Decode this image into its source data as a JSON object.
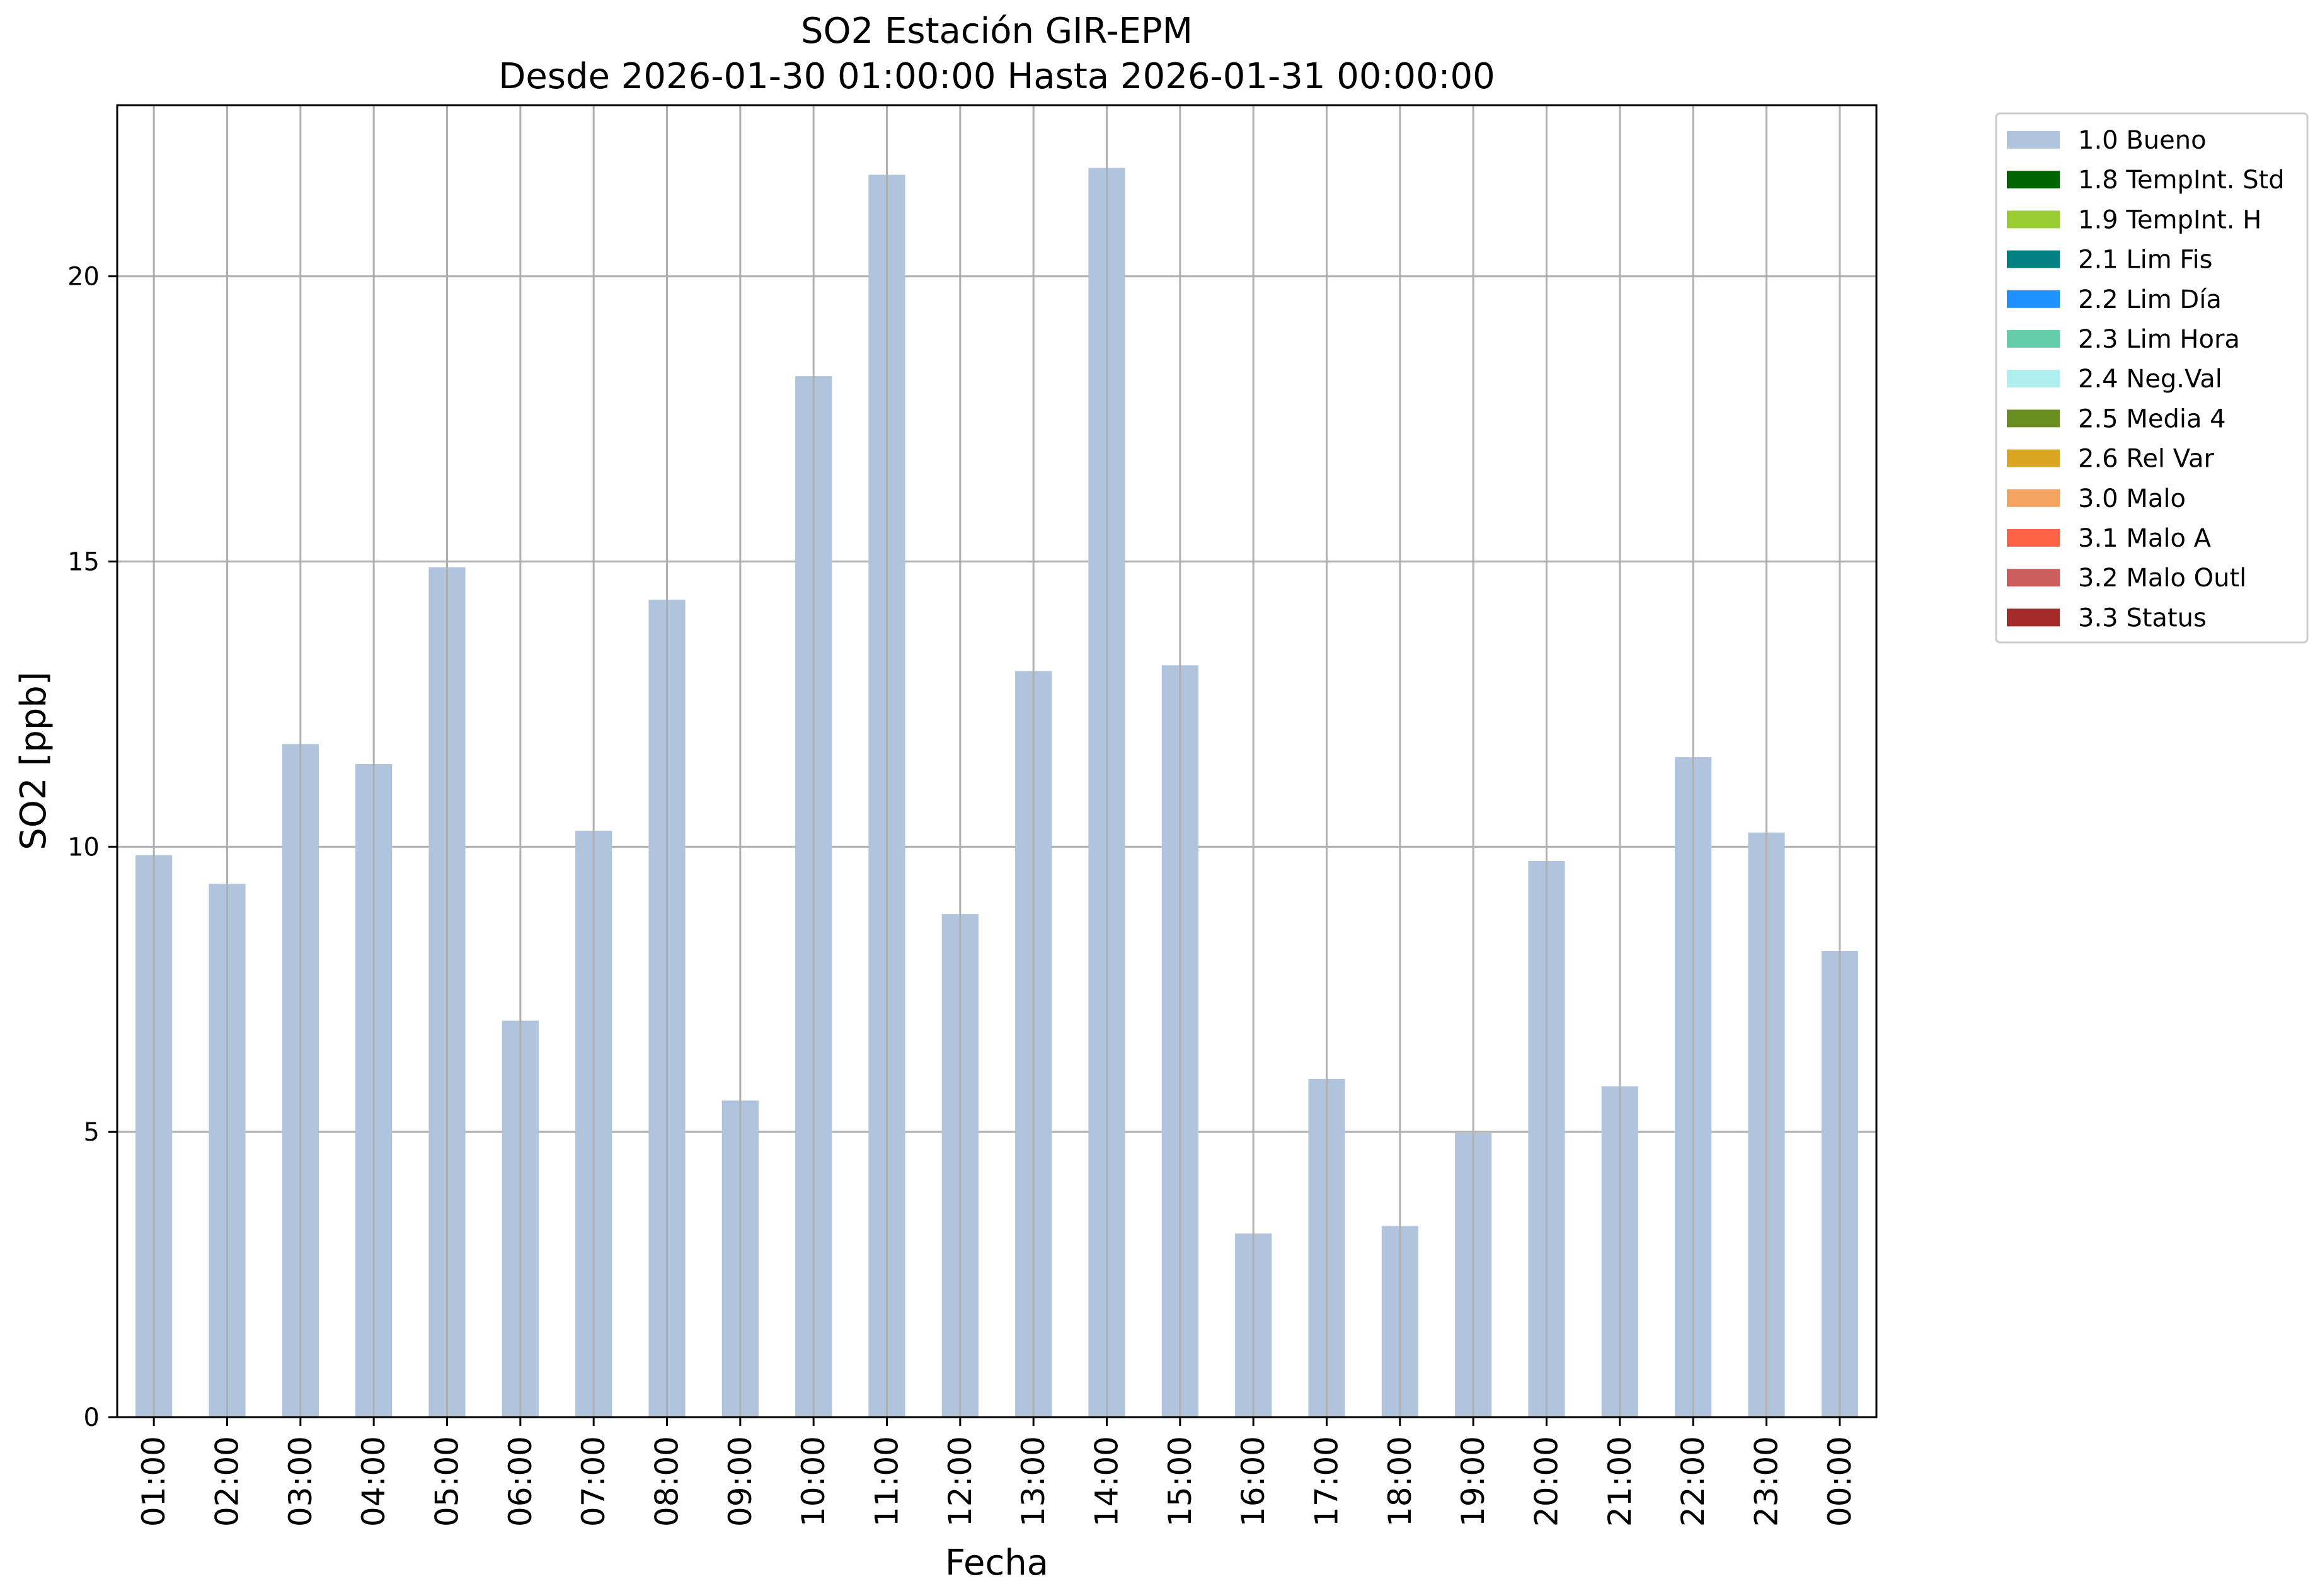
{
  "chart_data": {
    "type": "bar",
    "title": "SO2 Estación GIR-EPM",
    "subtitle": "Desde 2026-01-30 01:00:00 Hasta 2026-01-31 00:00:00",
    "xlabel": "Fecha",
    "ylabel": "SO2 [ppb]",
    "ylim": [
      0,
      23
    ],
    "yticks": [
      0,
      5,
      10,
      15,
      20
    ],
    "grid": true,
    "legend_position": "outside-top-right",
    "categories": [
      "01:00",
      "02:00",
      "03:00",
      "04:00",
      "05:00",
      "06:00",
      "07:00",
      "08:00",
      "09:00",
      "10:00",
      "11:00",
      "12:00",
      "13:00",
      "14:00",
      "15:00",
      "16:00",
      "17:00",
      "18:00",
      "19:00",
      "20:00",
      "21:00",
      "22:00",
      "23:00",
      "00:00"
    ],
    "series": [
      {
        "name": "1.0 Bueno",
        "color": "#b0c4de",
        "values": [
          9.85,
          9.35,
          11.8,
          11.45,
          14.9,
          6.95,
          10.28,
          14.33,
          5.55,
          18.25,
          21.78,
          8.82,
          13.08,
          21.9,
          13.18,
          3.22,
          5.93,
          3.35,
          4.98,
          9.75,
          5.8,
          11.57,
          10.25,
          8.17
        ]
      }
    ],
    "legend": [
      {
        "label": "1.0 Bueno",
        "color": "#b0c4de"
      },
      {
        "label": "1.8 TempInt. Std",
        "color": "#006400"
      },
      {
        "label": "1.9 TempInt. H",
        "color": "#9acd32"
      },
      {
        "label": "2.1 Lim Fis",
        "color": "#008080"
      },
      {
        "label": "2.2 Lim Día",
        "color": "#1e90ff"
      },
      {
        "label": "2.3 Lim Hora",
        "color": "#66cdaa"
      },
      {
        "label": "2.4 Neg.Val",
        "color": "#afeeee"
      },
      {
        "label": "2.5 Media 4",
        "color": "#6b8e23"
      },
      {
        "label": "2.6 Rel Var",
        "color": "#daa520"
      },
      {
        "label": "3.0 Malo",
        "color": "#f4a460"
      },
      {
        "label": "3.1 Malo A",
        "color": "#ff6347"
      },
      {
        "label": "3.2 Malo Outl",
        "color": "#cd5c5c"
      },
      {
        "label": "3.3 Status",
        "color": "#a52a2a"
      }
    ]
  }
}
